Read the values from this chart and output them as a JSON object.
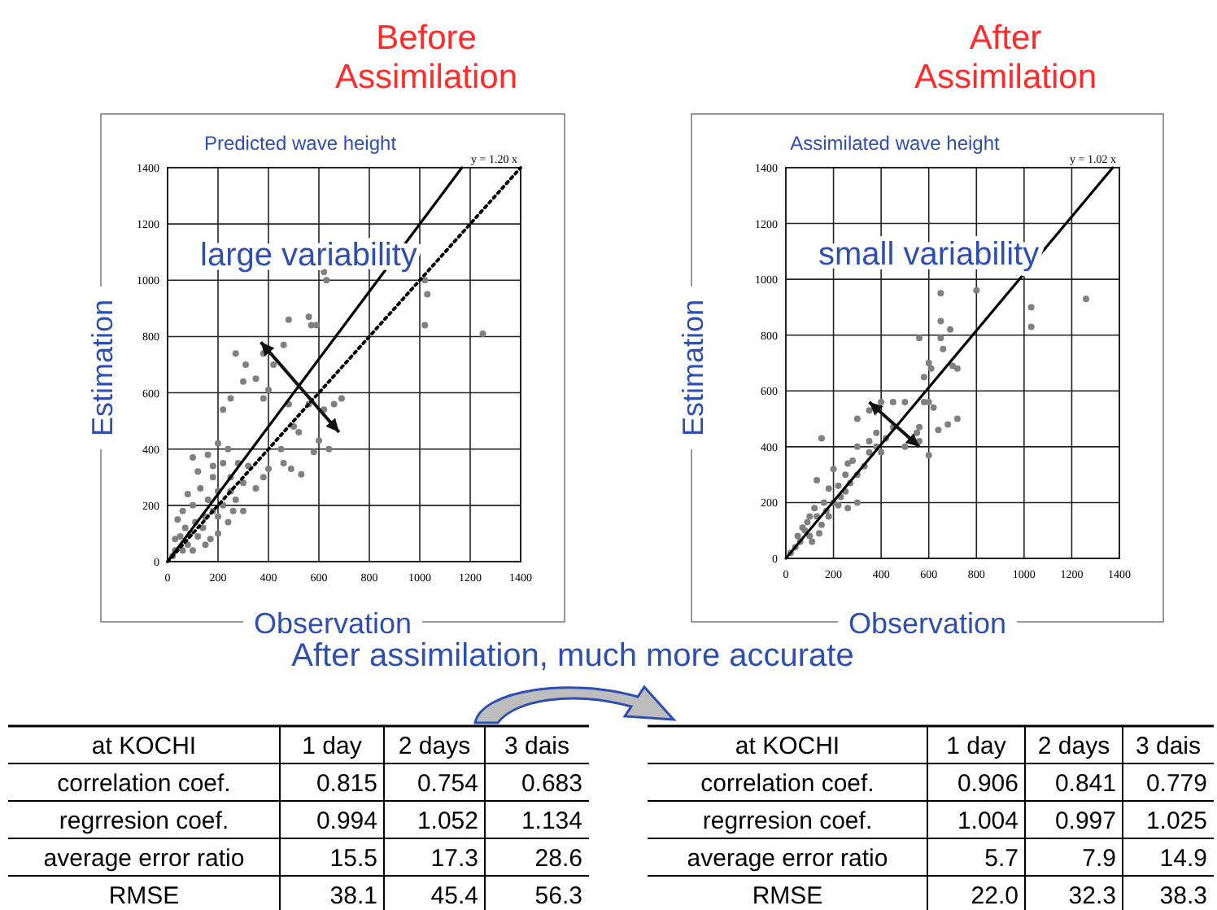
{
  "chart_data": [
    {
      "type": "scatter",
      "title": "Before Assimilation",
      "subtitle": "Predicted wave height",
      "xlabel": "Observation",
      "ylabel": "Estimation",
      "xlim": [
        0,
        1400
      ],
      "ylim": [
        0,
        1400
      ],
      "xticks": [
        0,
        200,
        400,
        600,
        800,
        1000,
        1200,
        1400
      ],
      "yticks": [
        0,
        200,
        400,
        600,
        800,
        1000,
        1200,
        1400
      ],
      "grid": true,
      "annotations": [
        "large variability",
        "y = 1.20 x"
      ],
      "series": [
        {
          "type": "scatter",
          "marker": "circle",
          "color": "#808080",
          "x": [
            620,
            630,
            1020,
            1030,
            1250,
            1020,
            560,
            570,
            590,
            480,
            460,
            420,
            380,
            310,
            270,
            300,
            350,
            400,
            380,
            480,
            560,
            620,
            660,
            690,
            500,
            520,
            600,
            580,
            640,
            450,
            460,
            490,
            530,
            400,
            220,
            250,
            200,
            160,
            100,
            120,
            180,
            250,
            300,
            350,
            380,
            270,
            220,
            300,
            240,
            160,
            130,
            80,
            60,
            40,
            100,
            150,
            200,
            120,
            80,
            50,
            30,
            20,
            70,
            140,
            180,
            110,
            90,
            60,
            150,
            250,
            200,
            170,
            100,
            30,
            200,
            260,
            280,
            320,
            220,
            240,
            180
          ],
          "values": [
            1030,
            1000,
            1000,
            950,
            810,
            840,
            870,
            840,
            840,
            860,
            770,
            700,
            740,
            700,
            740,
            640,
            650,
            610,
            580,
            560,
            560,
            540,
            560,
            580,
            480,
            460,
            430,
            390,
            400,
            400,
            350,
            330,
            310,
            330,
            540,
            580,
            420,
            380,
            370,
            320,
            300,
            300,
            280,
            260,
            300,
            220,
            200,
            180,
            140,
            220,
            260,
            240,
            180,
            150,
            200,
            160,
            100,
            90,
            60,
            90,
            40,
            20,
            120,
            120,
            180,
            140,
            100,
            40,
            60,
            250,
            250,
            80,
            40,
            80,
            160,
            180,
            350,
            340,
            350,
            400,
            340
          ]
        },
        {
          "type": "line",
          "color": "#000000",
          "line_style": "solid",
          "x": [
            0,
            1167
          ],
          "values": [
            0,
            1400
          ]
        },
        {
          "type": "line",
          "color": "#000000",
          "line_style": "dotted",
          "x": [
            0,
            1400
          ],
          "values": [
            0,
            1400
          ]
        }
      ]
    },
    {
      "type": "scatter",
      "title": "After Assimilation",
      "subtitle": "Assimilated wave height",
      "xlabel": "Observation",
      "ylabel": "Estimation",
      "xlim": [
        0,
        1400
      ],
      "ylim": [
        0,
        1400
      ],
      "xticks": [
        0,
        200,
        400,
        600,
        800,
        1000,
        1200,
        1400
      ],
      "yticks": [
        0,
        200,
        400,
        600,
        800,
        1000,
        1200,
        1400
      ],
      "grid": true,
      "annotations": [
        "small variability",
        "y = 1.02 x"
      ],
      "series": [
        {
          "type": "scatter",
          "marker": "circle",
          "color": "#808080",
          "x": [
            650,
            800,
            1260,
            1030,
            1030,
            650,
            690,
            560,
            650,
            660,
            600,
            580,
            610,
            700,
            720,
            600,
            620,
            580,
            560,
            640,
            680,
            720,
            500,
            450,
            400,
            350,
            300,
            560,
            600,
            550,
            500,
            420,
            450,
            380,
            400,
            350,
            300,
            150,
            330,
            300,
            280,
            250,
            220,
            200,
            130,
            160,
            200,
            250,
            260,
            300,
            180,
            120,
            100,
            150,
            80,
            60,
            40,
            20,
            100,
            130,
            180,
            220,
            90,
            70,
            50,
            140,
            110,
            170,
            230,
            270,
            350,
            380,
            260
          ],
          "values": [
            950,
            960,
            930,
            900,
            830,
            850,
            820,
            790,
            790,
            750,
            700,
            650,
            680,
            690,
            680,
            560,
            540,
            560,
            470,
            460,
            480,
            500,
            560,
            560,
            560,
            530,
            500,
            420,
            370,
            450,
            400,
            430,
            470,
            450,
            380,
            380,
            400,
            430,
            330,
            300,
            350,
            300,
            260,
            320,
            280,
            200,
            200,
            240,
            180,
            200,
            250,
            180,
            150,
            120,
            100,
            60,
            40,
            20,
            80,
            150,
            150,
            190,
            130,
            110,
            80,
            90,
            60,
            170,
            220,
            270,
            420,
            400,
            340
          ]
        },
        {
          "type": "line",
          "color": "#000000",
          "line_style": "solid",
          "x": [
            0,
            1372
          ],
          "values": [
            0,
            1400
          ]
        }
      ]
    },
    {
      "type": "other",
      "title": "After assimilation, much more accurate"
    },
    {
      "type": "other",
      "title": "at KOCHI",
      "categories": [
        "1 day",
        "2 days",
        "3 dais"
      ],
      "y_categories": [
        "correlation coef.",
        "regrresion coef.",
        "average error ratio",
        "RMSE"
      ],
      "cell_labels": [
        [
          "0.815",
          "0.754",
          "0.683"
        ],
        [
          "0.994",
          "1.052",
          "1.134"
        ],
        [
          "15.5",
          "17.3",
          "28.6"
        ],
        [
          "38.1",
          "45.4",
          "56.3"
        ]
      ]
    },
    {
      "type": "other",
      "title": "at KOCHI",
      "categories": [
        "1 day",
        "2 days",
        "3 dais"
      ],
      "y_categories": [
        "correlation coef.",
        "regrresion coef.",
        "average error ratio",
        "RMSE"
      ],
      "cell_labels": [
        [
          "0.906",
          "0.841",
          "0.779"
        ],
        [
          "1.004",
          "0.997",
          "1.025"
        ],
        [
          "5.7",
          "7.9",
          "14.9"
        ],
        [
          "22.0",
          "32.3",
          "38.3"
        ]
      ]
    }
  ]
}
